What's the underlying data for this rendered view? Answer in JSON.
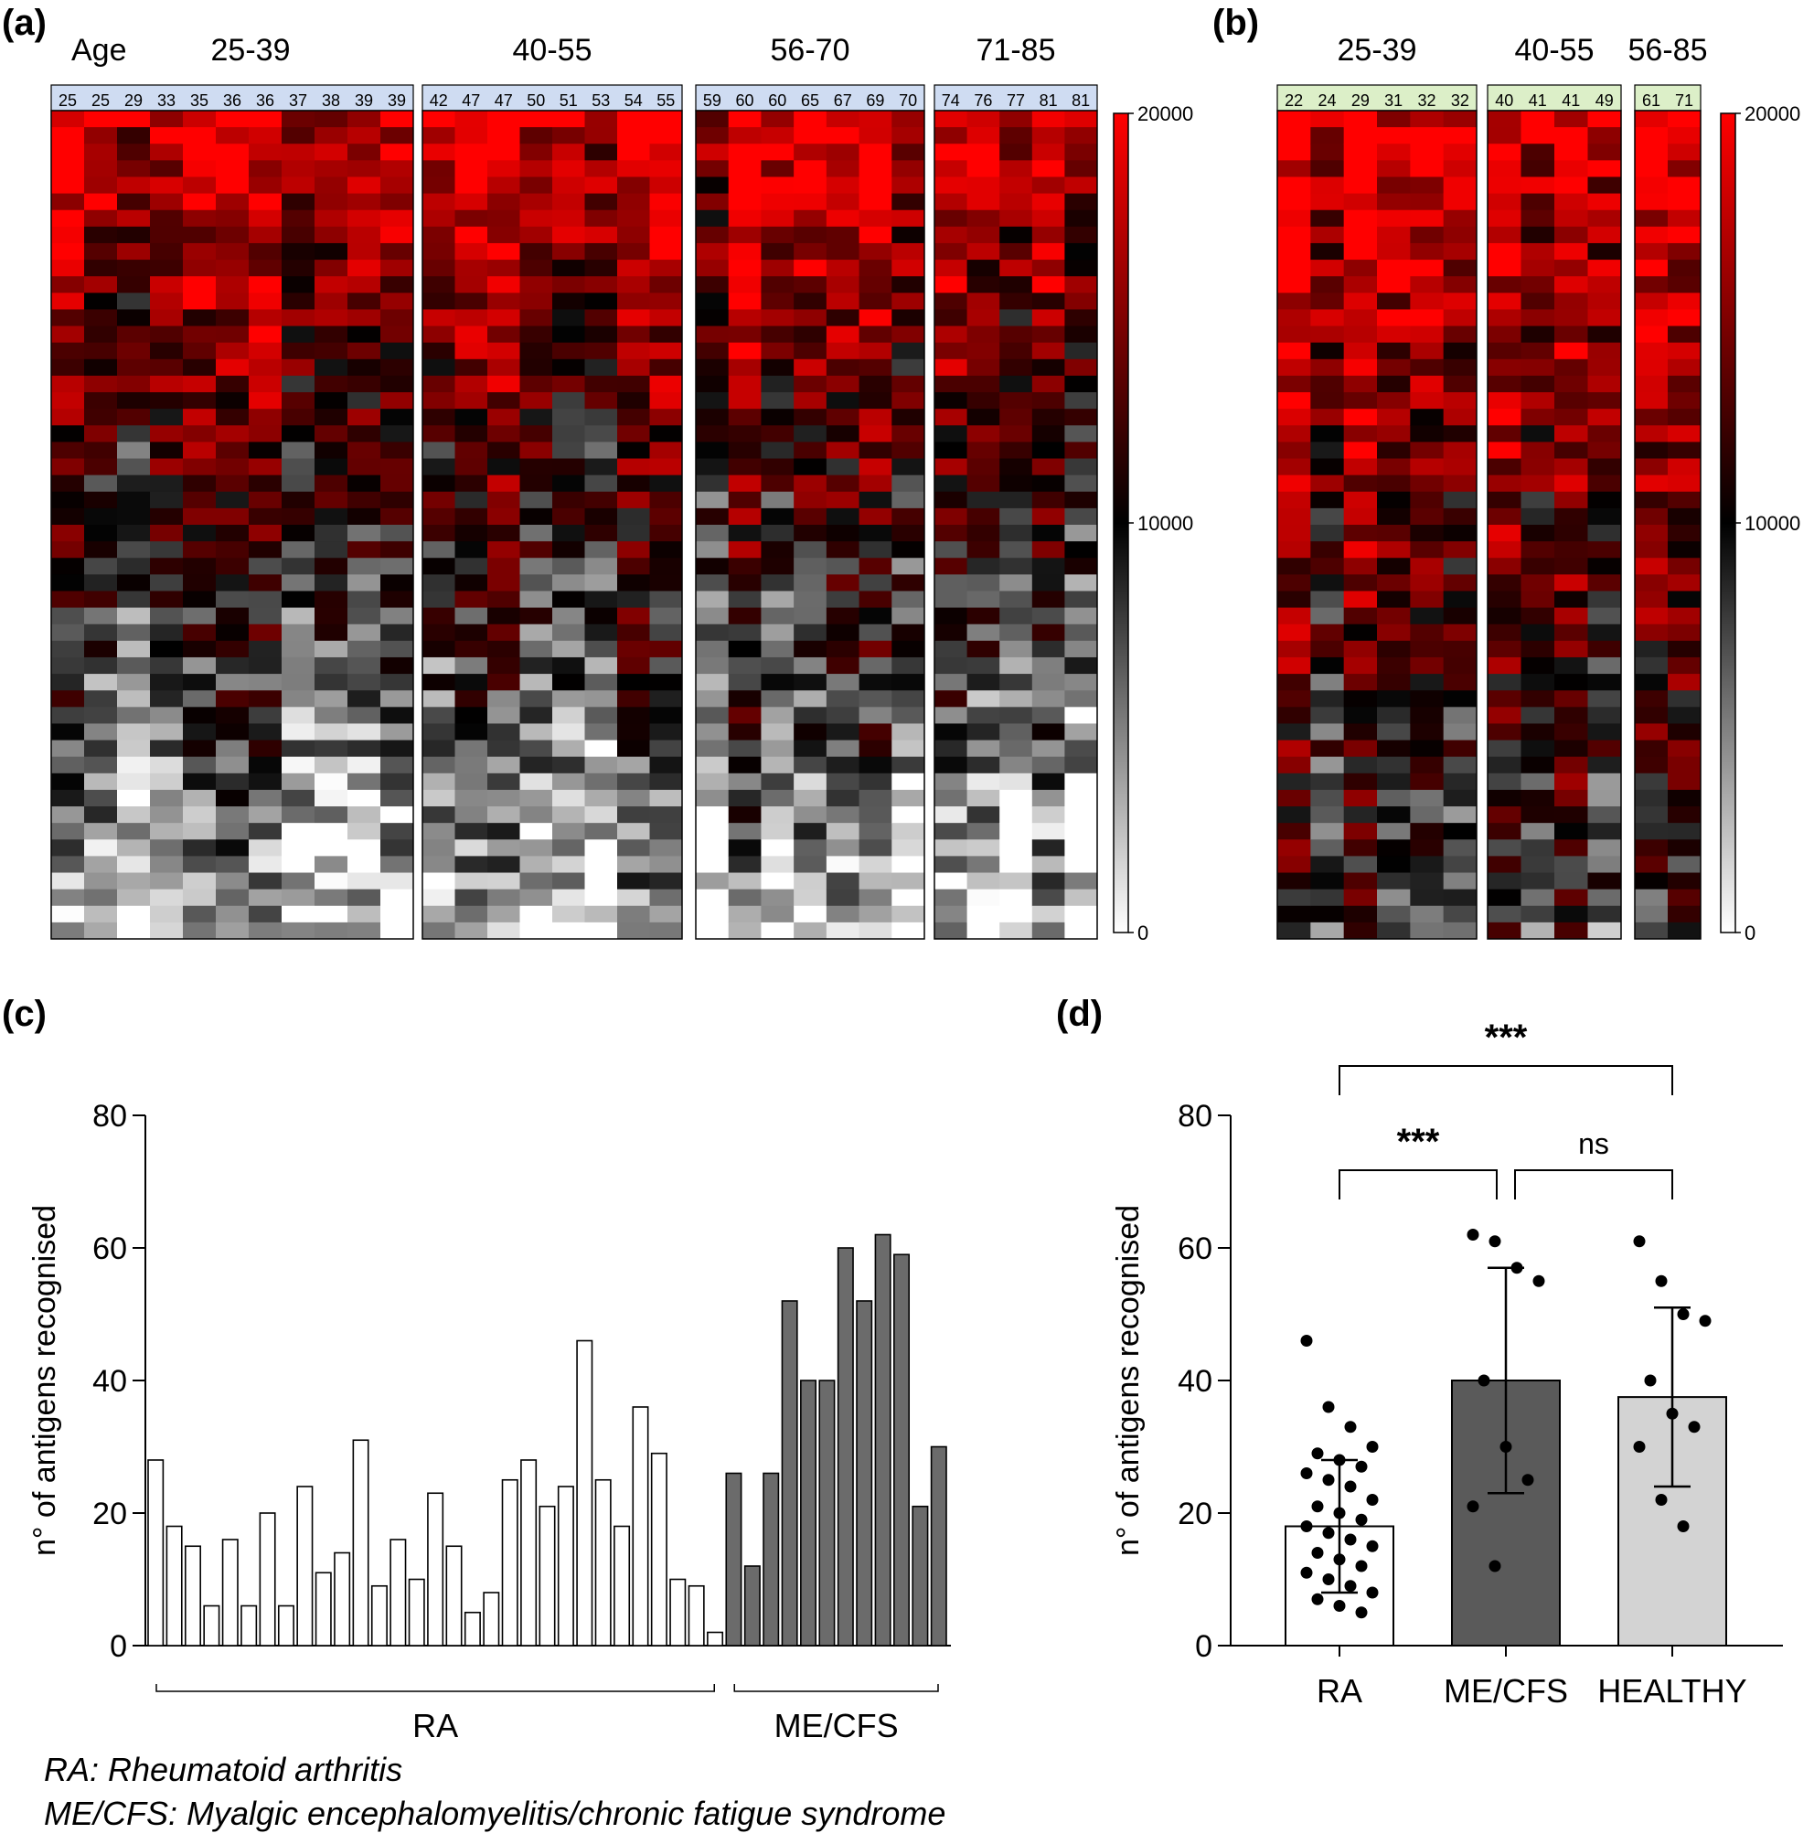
{
  "panel_labels": {
    "a": "(a)",
    "b": "(b)",
    "c": "(c)",
    "d": "(d)"
  },
  "heatmap_a": {
    "age_label": "Age",
    "colorscale": {
      "max": "20000",
      "mid": "10000",
      "min": "0"
    },
    "groups": [
      {
        "label": "25-39",
        "ages": [
          "25",
          "25",
          "29",
          "33",
          "35",
          "36",
          "36",
          "37",
          "38",
          "39",
          "39"
        ]
      },
      {
        "label": "40-55",
        "ages": [
          "42",
          "47",
          "47",
          "50",
          "51",
          "53",
          "54",
          "55"
        ]
      },
      {
        "label": "56-70",
        "ages": [
          "59",
          "60",
          "60",
          "65",
          "67",
          "69",
          "70"
        ]
      },
      {
        "label": "71-85",
        "ages": [
          "74",
          "76",
          "77",
          "81",
          "81"
        ]
      }
    ],
    "header_color": "#cfdcf2"
  },
  "heatmap_b": {
    "colorscale": {
      "max": "20000",
      "mid": "10000",
      "min": "0"
    },
    "groups": [
      {
        "label": "25-39",
        "ages": [
          "22",
          "24",
          "29",
          "31",
          "32",
          "32"
        ]
      },
      {
        "label": "40-55",
        "ages": [
          "40",
          "41",
          "41",
          "49"
        ]
      },
      {
        "label": "56-85",
        "ages": [
          "61",
          "71"
        ]
      }
    ],
    "header_color": "#dcefc8"
  },
  "footnotes": {
    "ra": "RA: Rheumatoid arthritis",
    "mecfs": "ME/CFS: Myalgic encephalomyelitis/chronic fatigue syndrome"
  },
  "chart_data": [
    {
      "type": "bar",
      "panel": "c",
      "ylabel": "n° of antigens recognised",
      "ylim": [
        0,
        80
      ],
      "yticks": [
        "0",
        "20",
        "40",
        "60",
        "80"
      ],
      "group_labels": [
        "RA",
        "ME/CFS"
      ],
      "series": [
        {
          "name": "RA",
          "color": "#ffffff",
          "values": [
            28,
            18,
            15,
            6,
            16,
            6,
            20,
            6,
            24,
            11,
            14,
            31,
            9,
            16,
            10,
            23,
            15,
            5,
            8,
            25,
            28,
            21,
            24,
            46,
            25,
            18,
            36,
            29,
            10,
            9,
            2
          ]
        },
        {
          "name": "ME/CFS",
          "color": "#6b6b6b",
          "values": [
            26,
            12,
            26,
            52,
            40,
            40,
            60,
            52,
            62,
            59,
            21,
            30
          ]
        }
      ]
    },
    {
      "type": "bar",
      "panel": "d",
      "ylabel": "n° of antigens recognised",
      "ylim": [
        0,
        80
      ],
      "yticks": [
        "0",
        "20",
        "40",
        "60",
        "80"
      ],
      "categories": [
        "RA",
        "ME/CFS",
        "HEALTHY"
      ],
      "means": [
        18,
        40,
        37.5
      ],
      "sd": [
        10,
        17,
        13.5
      ],
      "colors": [
        "#ffffff",
        "#5a5a5a",
        "#d3d3d3"
      ],
      "points": [
        [
          46,
          36,
          33,
          30,
          29,
          28,
          27,
          26,
          25,
          24,
          22,
          21,
          20,
          19,
          18,
          17,
          16,
          15,
          14,
          13,
          12,
          11,
          10,
          9,
          8,
          7,
          6,
          5
        ],
        [
          62,
          61,
          57,
          55,
          40,
          30,
          25,
          21,
          12
        ],
        [
          61,
          55,
          50,
          49,
          40,
          35,
          33,
          30,
          22,
          18
        ]
      ],
      "comparisons": [
        {
          "pair": [
            "RA",
            "HEALTHY"
          ],
          "label": "***"
        },
        {
          "pair": [
            "RA",
            "ME/CFS"
          ],
          "label": "***"
        },
        {
          "pair": [
            "ME/CFS",
            "HEALTHY"
          ],
          "label": "ns"
        }
      ]
    }
  ]
}
